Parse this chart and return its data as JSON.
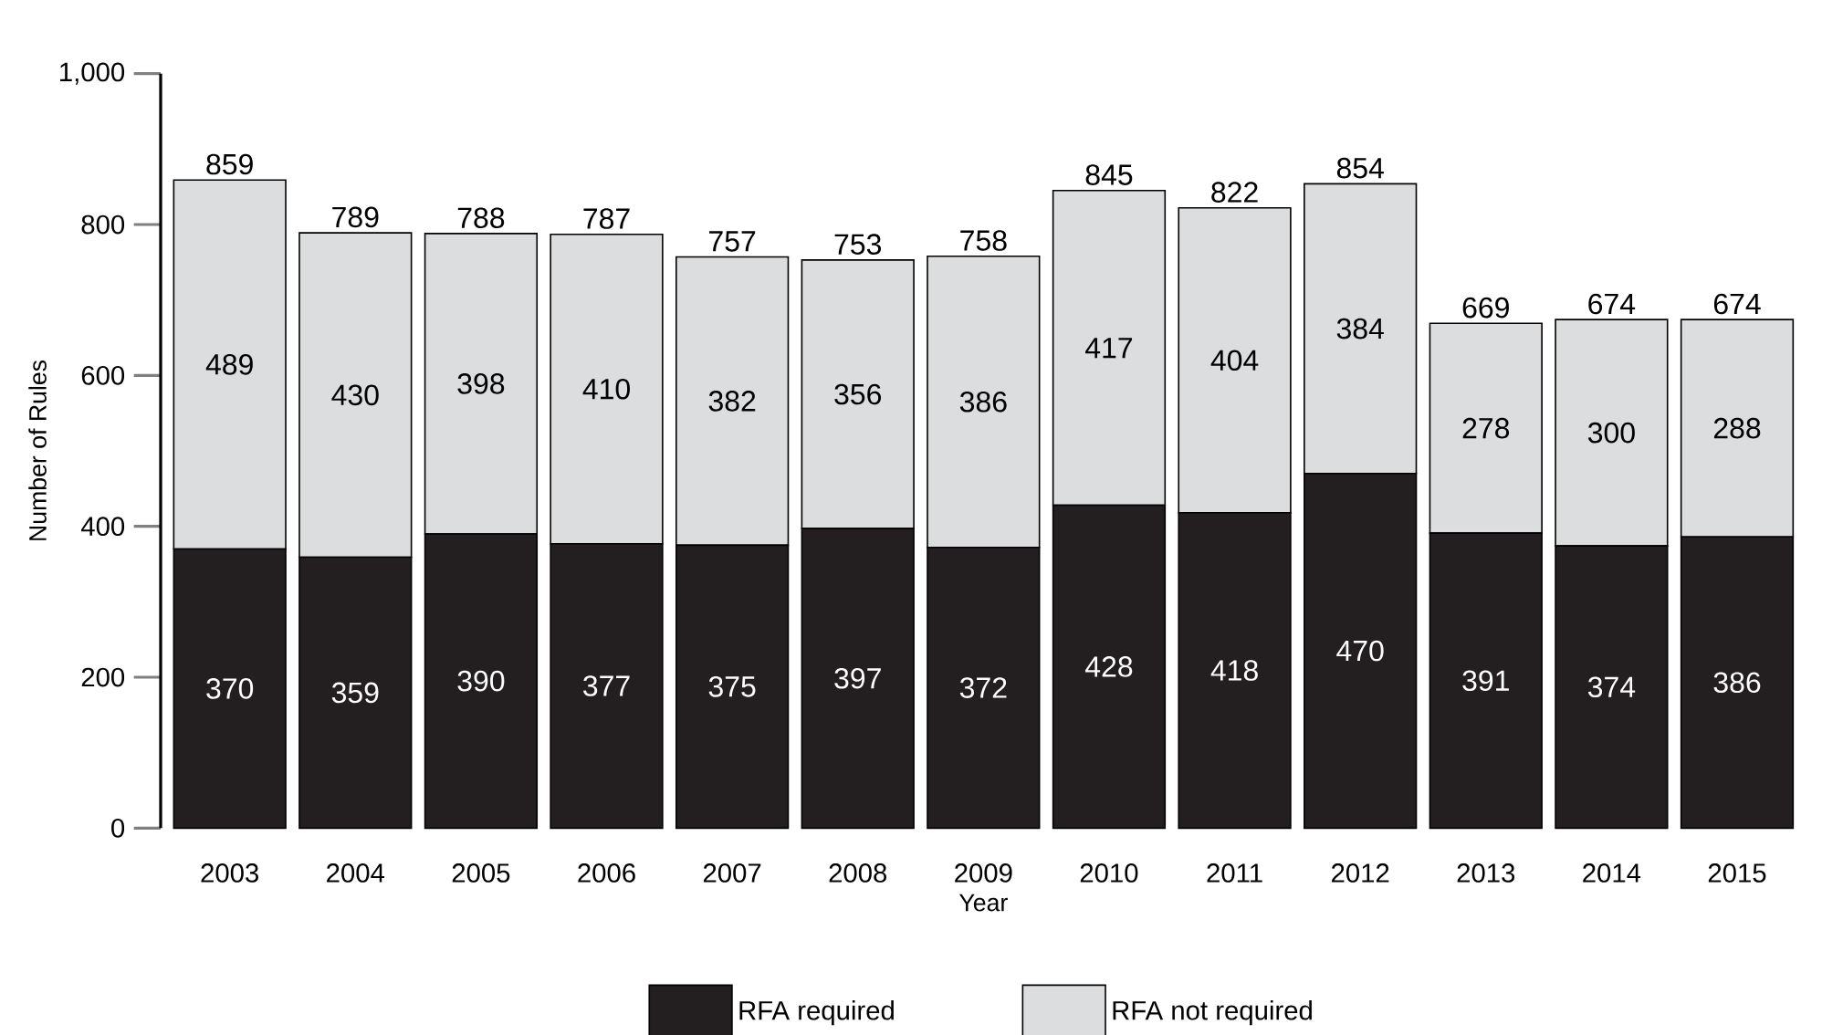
{
  "chart_data": {
    "type": "bar",
    "stacked": true,
    "xlabel": "Year",
    "ylabel": "Number of Rules",
    "categories": [
      "2003",
      "2004",
      "2005",
      "2006",
      "2007",
      "2008",
      "2009",
      "2010",
      "2011",
      "2012",
      "2013",
      "2014",
      "2015"
    ],
    "series": [
      {
        "name": "RFA required",
        "color": "#231f20",
        "values": [
          370,
          359,
          390,
          377,
          375,
          397,
          372,
          428,
          418,
          470,
          391,
          374,
          386
        ]
      },
      {
        "name": "RFA not required",
        "color": "#dcdddf",
        "values": [
          489,
          430,
          398,
          410,
          382,
          356,
          386,
          417,
          404,
          384,
          278,
          300,
          288
        ]
      }
    ],
    "totals": [
      "859",
      "789",
      "788",
      "787",
      "757",
      "753",
      "758",
      "845",
      "822",
      "854",
      "669",
      "674",
      "674"
    ],
    "data_labels": true,
    "legend": "bottom",
    "ylim": [
      0,
      1000
    ],
    "yticks": [
      0,
      200,
      400,
      600,
      800,
      {
        "value": 1000,
        "label": "1,000"
      }
    ]
  }
}
